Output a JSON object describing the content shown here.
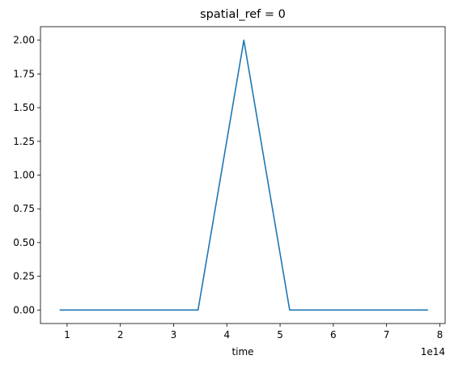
{
  "chart_data": {
    "type": "line",
    "title": "spatial_ref = 0",
    "xlabel": "time",
    "ylabel": "",
    "x_offset_label": "1e14",
    "xlim": [
      0.5,
      8.1
    ],
    "ylim": [
      -0.1,
      2.1
    ],
    "xticks": [
      1,
      2,
      3,
      4,
      5,
      6,
      7,
      8
    ],
    "xtick_labels": [
      "1",
      "2",
      "3",
      "4",
      "5",
      "6",
      "7",
      "8"
    ],
    "yticks": [
      0.0,
      0.25,
      0.5,
      0.75,
      1.0,
      1.25,
      1.5,
      1.75,
      2.0
    ],
    "ytick_labels": [
      "0.00",
      "0.25",
      "0.50",
      "0.75",
      "1.00",
      "1.25",
      "1.50",
      "1.75",
      "2.00"
    ],
    "grid": false,
    "line_color": "#1f77b4",
    "series": [
      {
        "x": [
          0.86,
          3.46,
          4.32,
          5.18,
          7.78
        ],
        "values": [
          0,
          0,
          2,
          0,
          0
        ]
      }
    ]
  }
}
